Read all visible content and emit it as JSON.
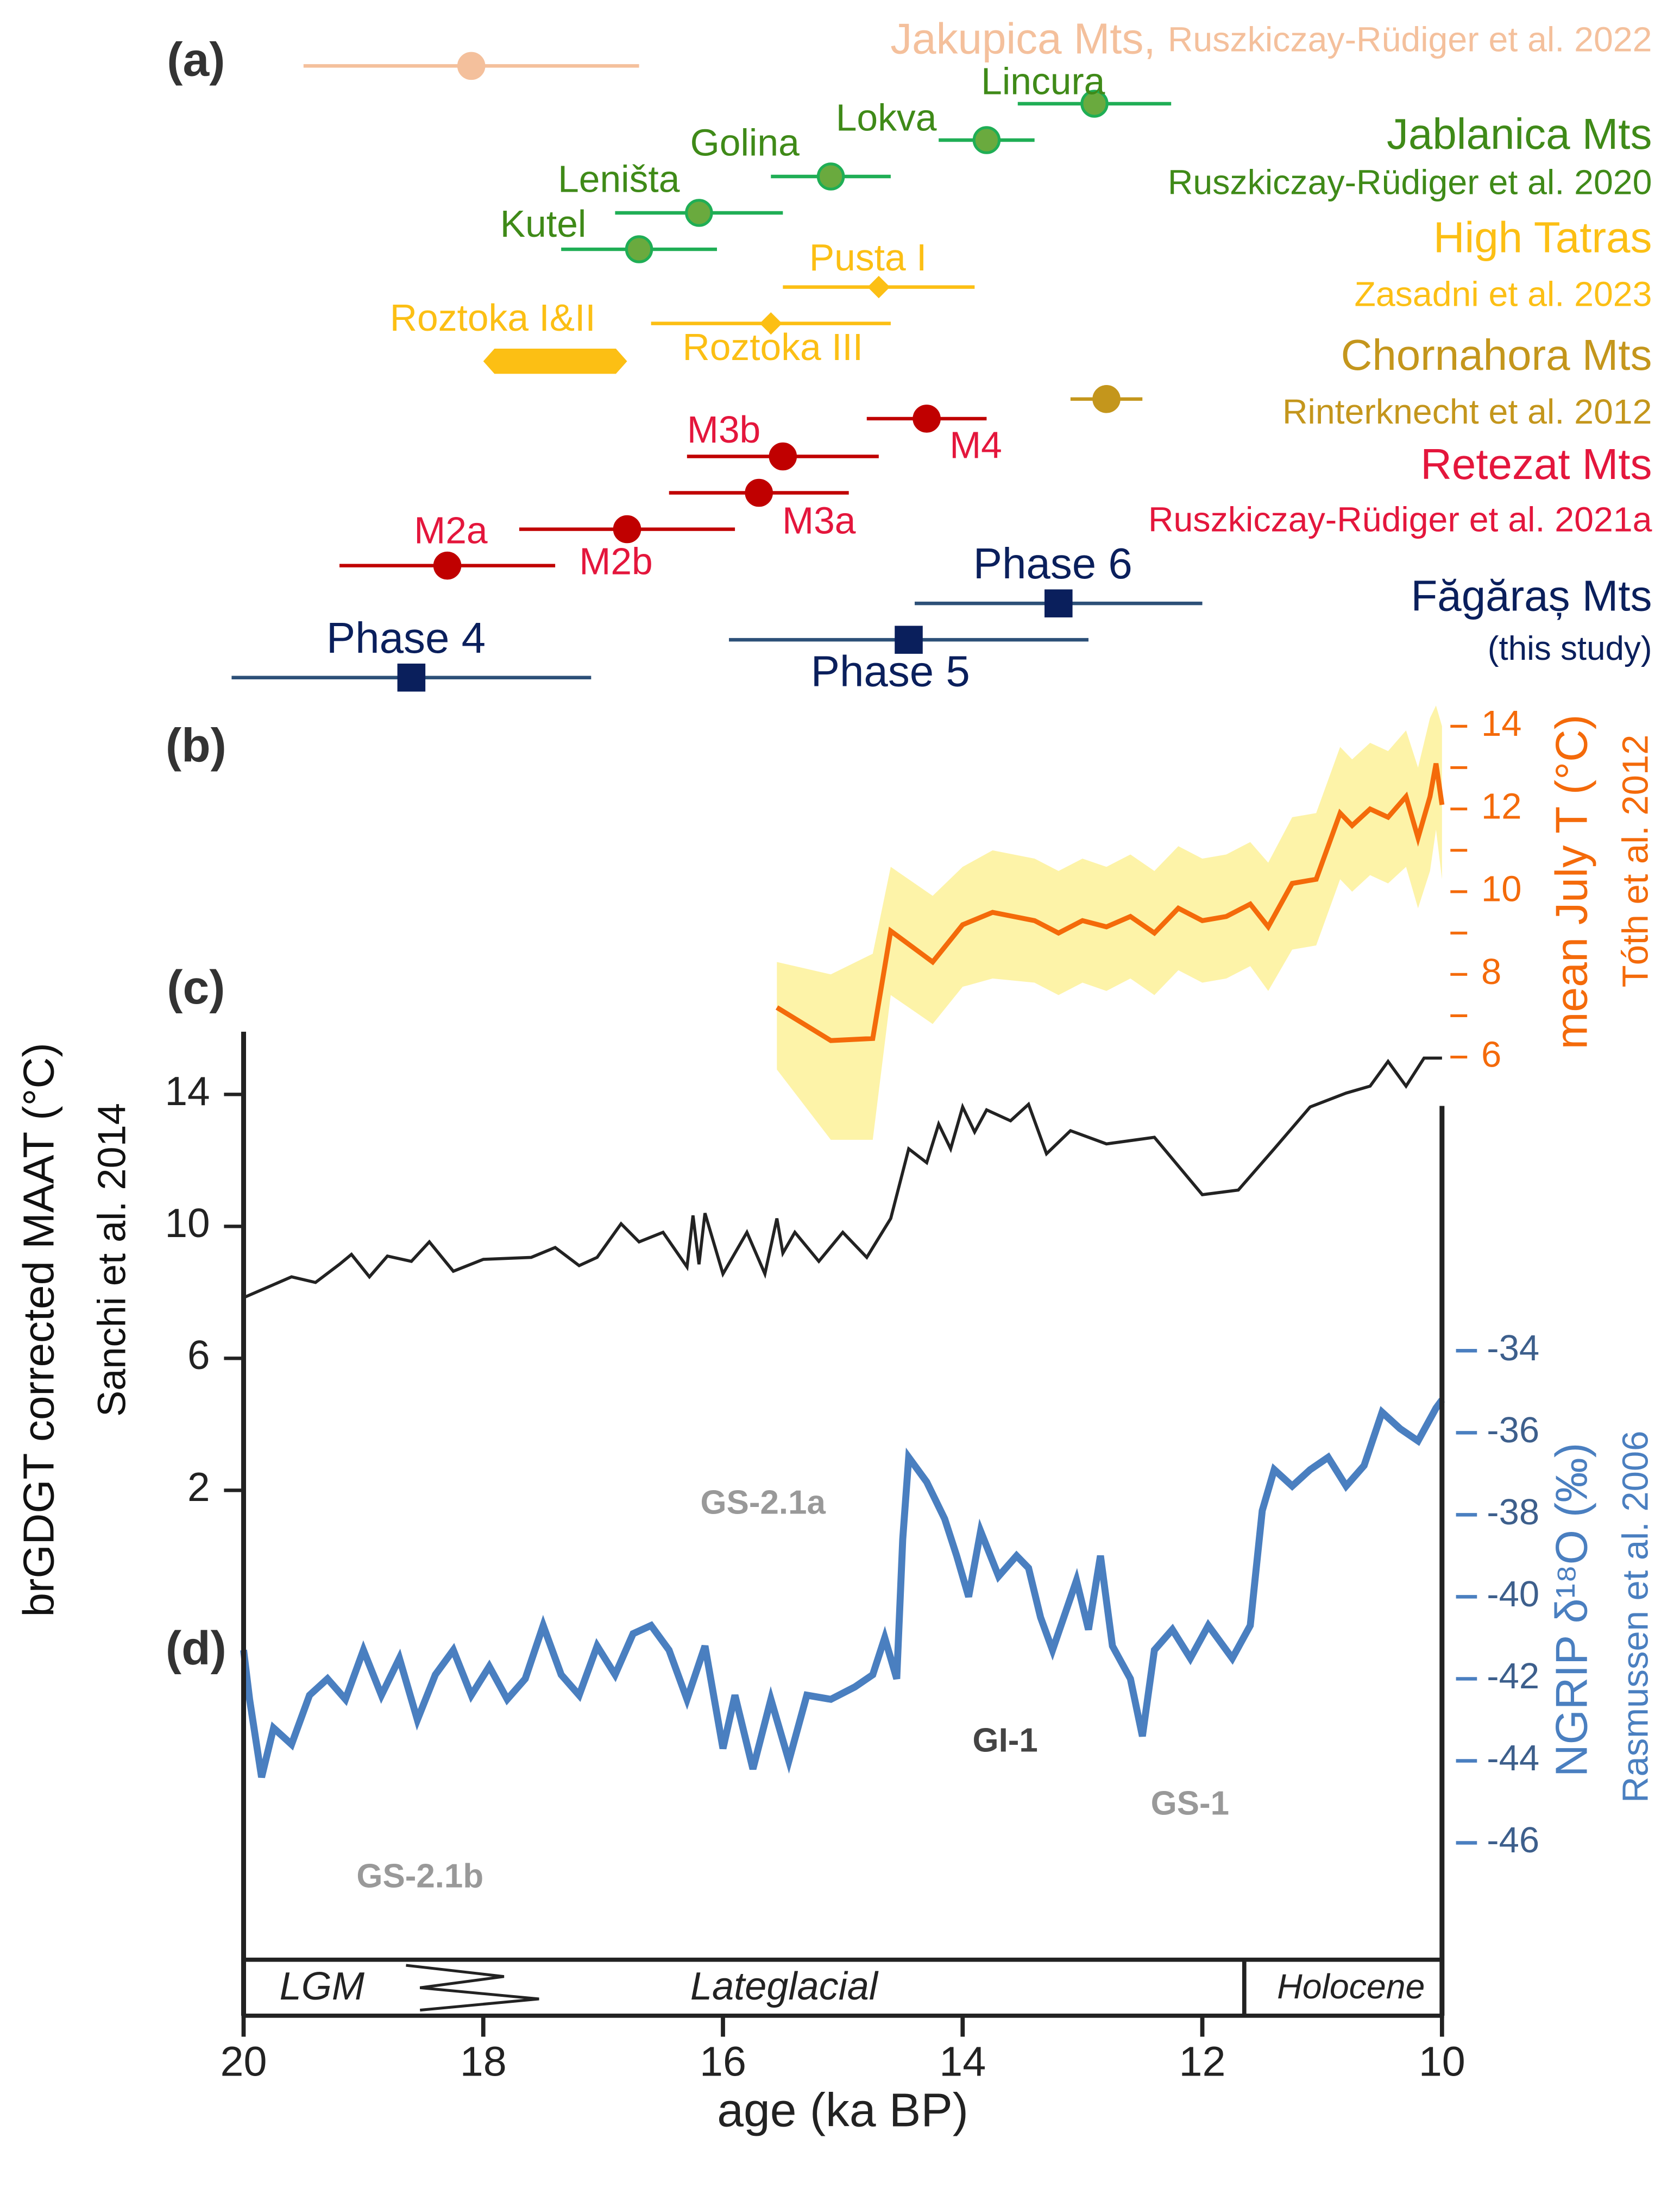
{
  "chart_data": [
    {
      "type": "dates",
      "panel_label": "(a)",
      "groups": [
        {
          "name": "Jakupica Mts,",
          "reference": "Ruszkiczay-Rüdiger et al. 2022",
          "color": "#f4c09c",
          "label_color": "#f4c09c",
          "marker": "circle",
          "sites": [
            {
              "age": 18.1,
              "error": 1.4
            }
          ]
        },
        {
          "name": "Jablanica Mts",
          "reference": "Ruszkiczay-Rüdiger et al. 2020",
          "color": "#1fae55",
          "label_color": "#3f8a18",
          "marker": "circle",
          "sites": [
            {
              "name": "Lincura",
              "age": 12.9,
              "error": 0.64
            },
            {
              "name": "Lokva",
              "age": 13.8,
              "error": 0.4
            },
            {
              "name": "Golina",
              "age": 15.1,
              "error": 0.5
            },
            {
              "name": "Leništa",
              "age": 16.2,
              "error": 0.7
            },
            {
              "name": "Kutel",
              "age": 16.7,
              "error": 0.65
            }
          ]
        },
        {
          "name": "High Tatras",
          "reference": "Zasadni et al. 2023",
          "color": "#fcbf14",
          "label_color": "#fcbf14",
          "marker": "diamond",
          "sites": [
            {
              "name": "Pusta I",
              "age": 14.7,
              "error": 0.8
            },
            {
              "name": "Roztoka III",
              "age": 15.6,
              "error": 1.0
            },
            {
              "name": "Roztoka I&II",
              "age": 17.4,
              "error": 0.6,
              "thick": true
            }
          ]
        },
        {
          "name": "Chornahora Mts",
          "reference": "Rinterknecht et al. 2012",
          "color": "#c4961c",
          "label_color": "#c4961c",
          "marker": "circle",
          "sites": [
            {
              "age": 12.8,
              "error": 0.3
            }
          ]
        },
        {
          "name": "Retezat Mts",
          "reference": "Ruszkiczay-Rüdiger et al. 2021a",
          "color": "#c00000",
          "label_color": "#e4163c",
          "marker": "circle",
          "sites": [
            {
              "name": "M4",
              "age": 14.3,
              "error": 0.5
            },
            {
              "name": "M3b",
              "age": 15.5,
              "error": 0.8
            },
            {
              "name": "M3a",
              "age": 15.7,
              "error": 0.75
            },
            {
              "name": "M2b",
              "age": 16.8,
              "error": 0.9
            },
            {
              "name": "M2a",
              "age": 18.3,
              "error": 0.9
            }
          ]
        },
        {
          "name": "Făgăraș Mts",
          "reference": "(this study)",
          "color": "#2d5078",
          "label_color": "#0a1f5c",
          "marker": "square",
          "sites": [
            {
              "name": "Phase 6",
              "age": 13.2,
              "error": 1.2
            },
            {
              "name": "Phase 5",
              "age": 14.45,
              "error": 1.5
            },
            {
              "name": "Phase 4",
              "age": 18.6,
              "error": 1.5
            }
          ]
        }
      ]
    },
    {
      "type": "line",
      "panel_label": "(b)",
      "y_label": "mean July T (°C)",
      "reference": "Tóth et al. 2012",
      "color": "#f46a0a",
      "band_color": "#fdf3a8",
      "x": [
        15.55,
        15.1,
        14.75,
        14.6,
        14.25,
        14.0,
        13.75,
        13.4,
        13.2,
        13.0,
        12.8,
        12.6,
        12.4,
        12.2,
        12.0,
        11.8,
        11.6,
        11.45,
        11.25,
        11.05,
        10.85,
        10.75,
        10.6,
        10.45,
        10.3,
        10.2,
        10.1,
        10.05,
        10.0
      ],
      "values": [
        7.2,
        6.4,
        6.45,
        9.05,
        8.3,
        9.2,
        9.5,
        9.3,
        9.0,
        9.3,
        9.15,
        9.4,
        9.0,
        9.6,
        9.3,
        9.4,
        9.7,
        9.15,
        10.2,
        10.3,
        11.9,
        11.6,
        12.0,
        11.8,
        12.3,
        11.3,
        12.3,
        13.1,
        12.1
      ],
      "upper": [
        8.3,
        8.0,
        8.5,
        10.6,
        9.9,
        10.6,
        11.0,
        10.8,
        10.5,
        10.8,
        10.6,
        10.9,
        10.5,
        11.1,
        10.8,
        10.9,
        11.2,
        10.7,
        11.8,
        11.9,
        13.5,
        13.2,
        13.6,
        13.4,
        13.9,
        13.0,
        14.2,
        14.5,
        14.0
      ],
      "lower": [
        5.7,
        4.0,
        4.0,
        7.5,
        6.8,
        7.7,
        7.9,
        7.8,
        7.5,
        7.8,
        7.6,
        7.9,
        7.5,
        8.1,
        7.8,
        7.9,
        8.2,
        7.6,
        8.6,
        8.7,
        10.3,
        10.0,
        10.4,
        10.2,
        10.6,
        9.6,
        10.5,
        11.5,
        10.3
      ],
      "ylim": [
        3.5,
        14.5
      ],
      "yticks": [
        6,
        8,
        10,
        12,
        14
      ],
      "minor_yticks": [
        7,
        9,
        11,
        13
      ]
    },
    {
      "type": "line",
      "panel_label": "(c)",
      "y_label": "brGDGT corrected MAAT (°C)",
      "reference": "Sanchi et al. 2014",
      "color": "#222222",
      "x": [
        20.0,
        19.6,
        19.4,
        19.2,
        19.1,
        18.95,
        18.8,
        18.6,
        18.45,
        18.25,
        18.0,
        17.6,
        17.4,
        17.2,
        17.05,
        16.85,
        16.7,
        16.5,
        16.3,
        16.25,
        16.2,
        16.15,
        16.0,
        15.8,
        15.65,
        15.55,
        15.5,
        15.4,
        15.2,
        15.0,
        14.8,
        14.6,
        14.45,
        14.3,
        14.2,
        14.1,
        14.0,
        13.9,
        13.8,
        13.6,
        13.45,
        13.3,
        13.1,
        12.8,
        12.4,
        12.0,
        11.7,
        11.4,
        11.1,
        10.8,
        10.6,
        10.45,
        10.3,
        10.15,
        10.0
      ],
      "values": [
        7.84,
        8.47,
        8.3,
        8.85,
        9.15,
        8.47,
        9.1,
        8.94,
        9.53,
        8.64,
        9.0,
        9.06,
        9.36,
        8.81,
        9.06,
        10.08,
        9.53,
        9.82,
        8.77,
        10.33,
        8.85,
        10.4,
        8.56,
        9.82,
        8.56,
        10.24,
        9.19,
        9.82,
        8.94,
        9.82,
        9.06,
        10.24,
        12.35,
        11.93,
        13.1,
        12.35,
        13.62,
        12.86,
        13.53,
        13.2,
        13.7,
        12.2,
        12.9,
        12.5,
        12.7,
        10.96,
        11.1,
        12.35,
        13.62,
        14.04,
        14.25,
        15.0,
        14.25,
        15.1,
        15.1
      ],
      "ylim": [
        0.5,
        15.9
      ],
      "yticks": [
        2,
        6,
        10,
        14
      ]
    },
    {
      "type": "line",
      "panel_label": "(d)",
      "y_label": "NGRIP δ¹⁸O (‰)",
      "reference": "Rasmussen et al. 2006",
      "color": "#4a7fc0",
      "x": [
        20.0,
        19.95,
        19.85,
        19.75,
        19.6,
        19.45,
        19.3,
        19.15,
        19.0,
        18.85,
        18.7,
        18.55,
        18.4,
        18.25,
        18.1,
        17.95,
        17.8,
        17.65,
        17.5,
        17.35,
        17.2,
        17.05,
        16.9,
        16.75,
        16.6,
        16.45,
        16.3,
        16.15,
        16.0,
        15.9,
        15.75,
        15.6,
        15.45,
        15.3,
        15.1,
        14.9,
        14.75,
        14.65,
        14.55,
        14.5,
        14.45,
        14.3,
        14.15,
        14.05,
        13.95,
        13.85,
        13.7,
        13.55,
        13.45,
        13.35,
        13.25,
        13.05,
        12.95,
        12.85,
        12.75,
        12.6,
        12.5,
        12.4,
        12.25,
        12.1,
        11.95,
        11.75,
        11.6,
        11.5,
        11.4,
        11.25,
        11.1,
        10.95,
        10.8,
        10.65,
        10.5,
        10.35,
        10.2,
        10.05,
        10.0
      ],
      "values": [
        -41.3,
        -42.5,
        -44.4,
        -43.2,
        -43.6,
        -42.4,
        -42.0,
        -42.5,
        -41.3,
        -42.4,
        -41.5,
        -43.0,
        -41.9,
        -41.3,
        -42.4,
        -41.7,
        -42.5,
        -42.0,
        -40.7,
        -41.9,
        -42.4,
        -41.2,
        -41.9,
        -40.9,
        -40.7,
        -41.3,
        -42.5,
        -41.2,
        -43.7,
        -42.4,
        -44.2,
        -42.5,
        -44.0,
        -42.4,
        -42.5,
        -42.2,
        -41.9,
        -41.0,
        -42.0,
        -38.6,
        -36.6,
        -37.2,
        -38.1,
        -39.0,
        -40.0,
        -38.4,
        -39.5,
        -39.0,
        -39.3,
        -40.5,
        -41.3,
        -39.6,
        -40.8,
        -39.0,
        -41.2,
        -42.0,
        -43.4,
        -41.3,
        -40.8,
        -41.5,
        -40.7,
        -41.5,
        -40.7,
        -37.9,
        -36.9,
        -37.3,
        -36.9,
        -36.6,
        -37.3,
        -36.8,
        -35.5,
        -35.9,
        -36.2,
        -35.4,
        -35.2
      ],
      "ylim": [
        -48.85,
        -33.15
      ],
      "yticks": [
        -34,
        -36,
        -38,
        -40,
        -42,
        -44,
        -46
      ],
      "annotations": [
        "GS-2.1a",
        "GS-2.1b",
        "GI-1",
        "GS-1"
      ]
    },
    {
      "type": "axis",
      "x_label": "age (ka BP)",
      "xlim": [
        20,
        10
      ],
      "xticks": [
        20,
        18,
        16,
        14,
        12,
        10
      ],
      "periods": [
        "LGM",
        "Lateglacial",
        "Holocene"
      ],
      "period_boundary": 11.65
    }
  ]
}
